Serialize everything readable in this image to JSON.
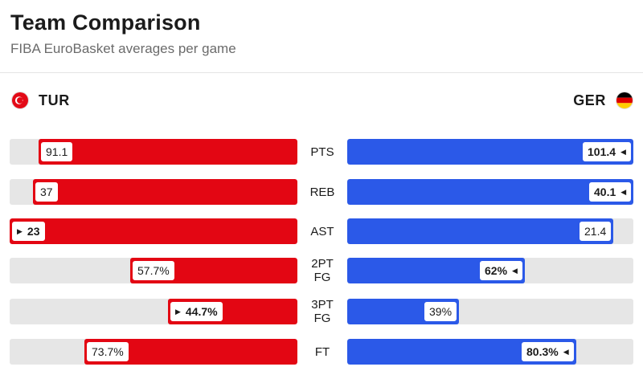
{
  "header": {
    "title": "Team Comparison",
    "subtitle": "FIBA EuroBasket averages per game"
  },
  "teams": {
    "left": {
      "name": "TUR",
      "flag_icon": "turkey-flag-icon",
      "color": "#e30613"
    },
    "right": {
      "name": "GER",
      "flag_icon": "germany-flag-icon",
      "color": "#2b59e8"
    }
  },
  "stats": [
    {
      "label": "PTS",
      "left": "91.1",
      "right": "101.4",
      "left_fill": 0.9,
      "right_fill": 1.0,
      "winner": "right"
    },
    {
      "label": "REB",
      "left": "37",
      "right": "40.1",
      "left_fill": 0.92,
      "right_fill": 1.0,
      "winner": "right"
    },
    {
      "label": "AST",
      "left": "23",
      "right": "21.4",
      "left_fill": 1.0,
      "right_fill": 0.93,
      "winner": "left"
    },
    {
      "label": "2PT FG",
      "left": "57.7%",
      "right": "62%",
      "left_fill": 0.58,
      "right_fill": 0.62,
      "winner": "right"
    },
    {
      "label": "3PT FG",
      "left": "44.7%",
      "right": "39%",
      "left_fill": 0.45,
      "right_fill": 0.39,
      "winner": "left"
    },
    {
      "label": "FT",
      "left": "73.7%",
      "right": "80.3%",
      "left_fill": 0.74,
      "right_fill": 0.8,
      "winner": "right"
    }
  ]
}
